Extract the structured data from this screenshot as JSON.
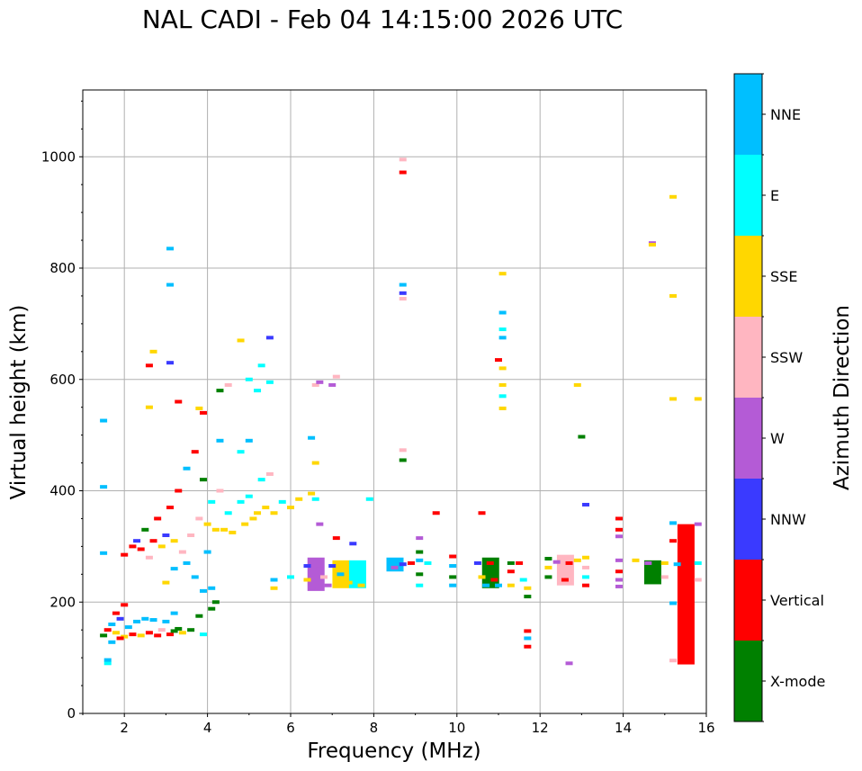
{
  "title": "NAL CADI - Feb 04 14:15:00 2026 UTC",
  "chart_data": {
    "type": "scatter",
    "title": "NAL CADI - Feb 04 14:15:00 2026 UTC",
    "xlabel": "Frequency (MHz)",
    "ylabel": "Virtual height (km)",
    "xlim": [
      1,
      16
    ],
    "ylim": [
      0,
      1120
    ],
    "xticks": [
      2,
      4,
      6,
      8,
      10,
      12,
      14,
      16
    ],
    "yticks": [
      0,
      200,
      400,
      600,
      800,
      1000
    ],
    "grid": true,
    "colorbar": {
      "label": "Azimuth Direction",
      "categories": [
        {
          "name": "X-mode",
          "color": "#008000"
        },
        {
          "name": "Vertical",
          "color": "#ff0000"
        },
        {
          "name": "NNW",
          "color": "#3a3aff"
        },
        {
          "name": "W",
          "color": "#b45bd6"
        },
        {
          "name": "SSW",
          "color": "#ffb6c1"
        },
        {
          "name": "SSE",
          "color": "#ffd700"
        },
        {
          "name": "E",
          "color": "#00ffff"
        },
        {
          "name": "NNE",
          "color": "#00bfff"
        }
      ]
    },
    "echoes": [
      {
        "f": 1.5,
        "h": 526,
        "c": "NNE"
      },
      {
        "f": 1.5,
        "h": 407,
        "c": "NNE"
      },
      {
        "f": 1.5,
        "h": 288,
        "c": "NNE"
      },
      {
        "f": 1.6,
        "h": 90,
        "c": "E"
      },
      {
        "f": 1.6,
        "h": 96,
        "c": "NNE"
      },
      {
        "f": 1.5,
        "h": 140,
        "c": "X-mode"
      },
      {
        "f": 1.6,
        "h": 150,
        "c": "Vertical"
      },
      {
        "f": 1.7,
        "h": 160,
        "c": "NNE"
      },
      {
        "f": 1.8,
        "h": 145,
        "c": "SSE"
      },
      {
        "f": 1.9,
        "h": 170,
        "c": "NNW"
      },
      {
        "f": 2.0,
        "h": 138,
        "c": "SSE"
      },
      {
        "f": 2.1,
        "h": 155,
        "c": "NNE"
      },
      {
        "f": 2.2,
        "h": 142,
        "c": "Vertical"
      },
      {
        "f": 2.3,
        "h": 165,
        "c": "NNE"
      },
      {
        "f": 2.4,
        "h": 140,
        "c": "SSE"
      },
      {
        "f": 2.5,
        "h": 170,
        "c": "NNE"
      },
      {
        "f": 2.6,
        "h": 145,
        "c": "Vertical"
      },
      {
        "f": 2.7,
        "h": 168,
        "c": "NNE"
      },
      {
        "f": 2.8,
        "h": 140,
        "c": "Vertical"
      },
      {
        "f": 2.9,
        "h": 150,
        "c": "SSW"
      },
      {
        "f": 3.0,
        "h": 165,
        "c": "NNE"
      },
      {
        "f": 3.1,
        "h": 142,
        "c": "Vertical"
      },
      {
        "f": 3.2,
        "h": 148,
        "c": "X-mode"
      },
      {
        "f": 3.3,
        "h": 152,
        "c": "X-mode"
      },
      {
        "f": 3.4,
        "h": 145,
        "c": "SSE"
      },
      {
        "f": 3.6,
        "h": 150,
        "c": "X-mode"
      },
      {
        "f": 3.9,
        "h": 142,
        "c": "E"
      },
      {
        "f": 1.7,
        "h": 128,
        "c": "NNE"
      },
      {
        "f": 1.9,
        "h": 135,
        "c": "Vertical"
      },
      {
        "f": 2.0,
        "h": 195,
        "c": "Vertical"
      },
      {
        "f": 1.8,
        "h": 180,
        "c": "Vertical"
      },
      {
        "f": 2.0,
        "h": 285,
        "c": "Vertical"
      },
      {
        "f": 2.2,
        "h": 300,
        "c": "Vertical"
      },
      {
        "f": 2.3,
        "h": 310,
        "c": "NNW"
      },
      {
        "f": 2.4,
        "h": 295,
        "c": "Vertical"
      },
      {
        "f": 2.5,
        "h": 330,
        "c": "X-mode"
      },
      {
        "f": 2.6,
        "h": 280,
        "c": "SSW"
      },
      {
        "f": 2.7,
        "h": 310,
        "c": "Vertical"
      },
      {
        "f": 2.8,
        "h": 350,
        "c": "Vertical"
      },
      {
        "f": 2.9,
        "h": 300,
        "c": "SSE"
      },
      {
        "f": 3.0,
        "h": 320,
        "c": "NNW"
      },
      {
        "f": 3.1,
        "h": 370,
        "c": "Vertical"
      },
      {
        "f": 3.2,
        "h": 310,
        "c": "SSE"
      },
      {
        "f": 3.3,
        "h": 400,
        "c": "Vertical"
      },
      {
        "f": 3.4,
        "h": 290,
        "c": "SSW"
      },
      {
        "f": 3.5,
        "h": 440,
        "c": "NNE"
      },
      {
        "f": 3.6,
        "h": 320,
        "c": "SSW"
      },
      {
        "f": 3.7,
        "h": 470,
        "c": "Vertical"
      },
      {
        "f": 3.8,
        "h": 350,
        "c": "SSW"
      },
      {
        "f": 3.9,
        "h": 420,
        "c": "X-mode"
      },
      {
        "f": 4.0,
        "h": 340,
        "c": "SSE"
      },
      {
        "f": 4.1,
        "h": 380,
        "c": "E"
      },
      {
        "f": 4.2,
        "h": 330,
        "c": "SSE"
      },
      {
        "f": 4.3,
        "h": 400,
        "c": "SSW"
      },
      {
        "f": 4.4,
        "h": 330,
        "c": "SSE"
      },
      {
        "f": 4.5,
        "h": 360,
        "c": "E"
      },
      {
        "f": 4.6,
        "h": 325,
        "c": "SSE"
      },
      {
        "f": 4.8,
        "h": 380,
        "c": "E"
      },
      {
        "f": 4.9,
        "h": 340,
        "c": "SSE"
      },
      {
        "f": 5.0,
        "h": 390,
        "c": "E"
      },
      {
        "f": 5.1,
        "h": 350,
        "c": "SSE"
      },
      {
        "f": 5.2,
        "h": 360,
        "c": "SSE"
      },
      {
        "f": 5.3,
        "h": 420,
        "c": "E"
      },
      {
        "f": 5.4,
        "h": 370,
        "c": "SSE"
      },
      {
        "f": 5.5,
        "h": 430,
        "c": "SSW"
      },
      {
        "f": 5.6,
        "h": 360,
        "c": "SSE"
      },
      {
        "f": 5.8,
        "h": 380,
        "c": "E"
      },
      {
        "f": 6.0,
        "h": 370,
        "c": "SSE"
      },
      {
        "f": 6.2,
        "h": 385,
        "c": "SSE"
      },
      {
        "f": 6.5,
        "h": 395,
        "c": "SSE"
      },
      {
        "f": 6.6,
        "h": 385,
        "c": "E"
      },
      {
        "f": 3.0,
        "h": 235,
        "c": "SSE"
      },
      {
        "f": 3.2,
        "h": 260,
        "c": "NNE"
      },
      {
        "f": 3.5,
        "h": 270,
        "c": "NNE"
      },
      {
        "f": 3.7,
        "h": 245,
        "c": "NNE"
      },
      {
        "f": 3.9,
        "h": 220,
        "c": "NNE"
      },
      {
        "f": 4.1,
        "h": 225,
        "c": "NNE"
      },
      {
        "f": 4.2,
        "h": 200,
        "c": "X-mode"
      },
      {
        "f": 4.1,
        "h": 188,
        "c": "X-mode"
      },
      {
        "f": 4.0,
        "h": 290,
        "c": "NNE"
      },
      {
        "f": 3.8,
        "h": 175,
        "c": "X-mode"
      },
      {
        "f": 3.2,
        "h": 180,
        "c": "NNE"
      },
      {
        "f": 2.7,
        "h": 650,
        "c": "SSE"
      },
      {
        "f": 2.6,
        "h": 625,
        "c": "Vertical"
      },
      {
        "f": 2.6,
        "h": 550,
        "c": "SSE"
      },
      {
        "f": 3.1,
        "h": 630,
        "c": "NNW"
      },
      {
        "f": 3.1,
        "h": 835,
        "c": "NNE"
      },
      {
        "f": 3.1,
        "h": 770,
        "c": "NNE"
      },
      {
        "f": 3.3,
        "h": 560,
        "c": "Vertical"
      },
      {
        "f": 3.8,
        "h": 548,
        "c": "SSE"
      },
      {
        "f": 3.9,
        "h": 540,
        "c": "Vertical"
      },
      {
        "f": 4.3,
        "h": 490,
        "c": "NNE"
      },
      {
        "f": 4.3,
        "h": 580,
        "c": "X-mode"
      },
      {
        "f": 4.5,
        "h": 590,
        "c": "SSW"
      },
      {
        "f": 4.8,
        "h": 670,
        "c": "SSE"
      },
      {
        "f": 5.0,
        "h": 600,
        "c": "E"
      },
      {
        "f": 5.2,
        "h": 580,
        "c": "E"
      },
      {
        "f": 5.5,
        "h": 595,
        "c": "E"
      },
      {
        "f": 5.5,
        "h": 675,
        "c": "NNW"
      },
      {
        "f": 5.3,
        "h": 625,
        "c": "E"
      },
      {
        "f": 5.0,
        "h": 490,
        "c": "NNE"
      },
      {
        "f": 4.8,
        "h": 470,
        "c": "E"
      },
      {
        "f": 6.5,
        "h": 495,
        "c": "NNE"
      },
      {
        "f": 6.6,
        "h": 450,
        "c": "SSE"
      },
      {
        "f": 6.6,
        "h": 590,
        "c": "SSW"
      },
      {
        "f": 6.7,
        "h": 595,
        "c": "W"
      },
      {
        "f": 7.0,
        "h": 590,
        "c": "W"
      },
      {
        "f": 7.1,
        "h": 605,
        "c": "SSW"
      },
      {
        "f": 6.7,
        "h": 340,
        "c": "W"
      },
      {
        "f": 7.1,
        "h": 315,
        "c": "Vertical"
      },
      {
        "f": 7.5,
        "h": 305,
        "c": "NNW"
      },
      {
        "f": 7.9,
        "h": 385,
        "c": "E"
      },
      {
        "f": 5.6,
        "h": 240,
        "c": "NNE"
      },
      {
        "f": 5.6,
        "h": 225,
        "c": "SSE"
      },
      {
        "f": 6.0,
        "h": 245,
        "c": "E"
      },
      {
        "f": 6.4,
        "h": 265,
        "c": "NNW"
      },
      {
        "f": 6.4,
        "h": 240,
        "c": "SSE"
      },
      {
        "f": 6.5,
        "h": 225,
        "c": "W"
      },
      {
        "f": 6.7,
        "h": 260,
        "c": "W"
      },
      {
        "f": 6.8,
        "h": 245,
        "c": "SSW"
      },
      {
        "f": 6.9,
        "h": 230,
        "c": "W"
      },
      {
        "f": 7.0,
        "h": 265,
        "c": "NNW"
      },
      {
        "f": 7.2,
        "h": 250,
        "c": "NNE"
      },
      {
        "f": 7.4,
        "h": 235,
        "c": "SSE"
      },
      {
        "f": 7.6,
        "h": 270,
        "c": "E"
      },
      {
        "f": 7.7,
        "h": 230,
        "c": "SSE"
      },
      {
        "f": 8.4,
        "h": 275,
        "c": "NNE"
      },
      {
        "f": 8.5,
        "h": 262,
        "c": "W"
      },
      {
        "f": 8.7,
        "h": 268,
        "c": "NNW"
      },
      {
        "f": 8.9,
        "h": 270,
        "c": "Vertical"
      },
      {
        "f": 9.1,
        "h": 275,
        "c": "NNE"
      },
      {
        "f": 9.1,
        "h": 250,
        "c": "X-mode"
      },
      {
        "f": 9.1,
        "h": 230,
        "c": "E"
      },
      {
        "f": 9.1,
        "h": 315,
        "c": "W"
      },
      {
        "f": 9.1,
        "h": 290,
        "c": "X-mode"
      },
      {
        "f": 9.3,
        "h": 270,
        "c": "E"
      },
      {
        "f": 9.5,
        "h": 360,
        "c": "Vertical"
      },
      {
        "f": 8.7,
        "h": 455,
        "c": "X-mode"
      },
      {
        "f": 8.7,
        "h": 473,
        "c": "SSW"
      },
      {
        "f": 8.7,
        "h": 770,
        "c": "NNE"
      },
      {
        "f": 8.7,
        "h": 755,
        "c": "NNW"
      },
      {
        "f": 8.7,
        "h": 745,
        "c": "SSW"
      },
      {
        "f": 8.7,
        "h": 972,
        "c": "Vertical"
      },
      {
        "f": 8.7,
        "h": 995,
        "c": "SSW"
      },
      {
        "f": 9.9,
        "h": 282,
        "c": "Vertical"
      },
      {
        "f": 9.9,
        "h": 265,
        "c": "NNE"
      },
      {
        "f": 9.9,
        "h": 245,
        "c": "X-mode"
      },
      {
        "f": 9.9,
        "h": 230,
        "c": "NNE"
      },
      {
        "f": 10.5,
        "h": 270,
        "c": "NNW"
      },
      {
        "f": 10.6,
        "h": 360,
        "c": "Vertical"
      },
      {
        "f": 10.6,
        "h": 245,
        "c": "SSE"
      },
      {
        "f": 10.7,
        "h": 230,
        "c": "NNE"
      },
      {
        "f": 10.8,
        "h": 270,
        "c": "Vertical"
      },
      {
        "f": 10.9,
        "h": 240,
        "c": "Vertical"
      },
      {
        "f": 11.0,
        "h": 230,
        "c": "NNE"
      },
      {
        "f": 11.0,
        "h": 635,
        "c": "Vertical"
      },
      {
        "f": 11.1,
        "h": 620,
        "c": "SSE"
      },
      {
        "f": 11.1,
        "h": 590,
        "c": "SSE"
      },
      {
        "f": 11.1,
        "h": 570,
        "c": "E"
      },
      {
        "f": 11.1,
        "h": 548,
        "c": "SSE"
      },
      {
        "f": 11.1,
        "h": 720,
        "c": "NNE"
      },
      {
        "f": 11.1,
        "h": 690,
        "c": "E"
      },
      {
        "f": 11.1,
        "h": 675,
        "c": "NNE"
      },
      {
        "f": 11.1,
        "h": 790,
        "c": "SSE"
      },
      {
        "f": 11.3,
        "h": 270,
        "c": "X-mode"
      },
      {
        "f": 11.3,
        "h": 255,
        "c": "Vertical"
      },
      {
        "f": 11.3,
        "h": 230,
        "c": "SSE"
      },
      {
        "f": 11.5,
        "h": 270,
        "c": "Vertical"
      },
      {
        "f": 11.6,
        "h": 240,
        "c": "E"
      },
      {
        "f": 11.7,
        "h": 225,
        "c": "SSE"
      },
      {
        "f": 11.7,
        "h": 210,
        "c": "X-mode"
      },
      {
        "f": 11.7,
        "h": 148,
        "c": "Vertical"
      },
      {
        "f": 11.7,
        "h": 135,
        "c": "NNE"
      },
      {
        "f": 11.7,
        "h": 120,
        "c": "Vertical"
      },
      {
        "f": 12.2,
        "h": 278,
        "c": "X-mode"
      },
      {
        "f": 12.2,
        "h": 262,
        "c": "SSE"
      },
      {
        "f": 12.2,
        "h": 245,
        "c": "X-mode"
      },
      {
        "f": 12.4,
        "h": 272,
        "c": "W"
      },
      {
        "f": 12.5,
        "h": 280,
        "c": "SSW"
      },
      {
        "f": 12.6,
        "h": 240,
        "c": "Vertical"
      },
      {
        "f": 12.7,
        "h": 270,
        "c": "Vertical"
      },
      {
        "f": 12.7,
        "h": 90,
        "c": "W"
      },
      {
        "f": 12.9,
        "h": 275,
        "c": "SSE"
      },
      {
        "f": 12.9,
        "h": 590,
        "c": "SSE"
      },
      {
        "f": 13.0,
        "h": 497,
        "c": "X-mode"
      },
      {
        "f": 13.1,
        "h": 375,
        "c": "NNW"
      },
      {
        "f": 13.1,
        "h": 280,
        "c": "SSE"
      },
      {
        "f": 13.1,
        "h": 262,
        "c": "SSW"
      },
      {
        "f": 13.1,
        "h": 245,
        "c": "E"
      },
      {
        "f": 13.1,
        "h": 230,
        "c": "Vertical"
      },
      {
        "f": 13.9,
        "h": 350,
        "c": "Vertical"
      },
      {
        "f": 13.9,
        "h": 330,
        "c": "Vertical"
      },
      {
        "f": 13.9,
        "h": 318,
        "c": "W"
      },
      {
        "f": 13.9,
        "h": 275,
        "c": "W"
      },
      {
        "f": 13.9,
        "h": 255,
        "c": "Vertical"
      },
      {
        "f": 13.9,
        "h": 240,
        "c": "W"
      },
      {
        "f": 13.9,
        "h": 228,
        "c": "W"
      },
      {
        "f": 14.3,
        "h": 275,
        "c": "SSE"
      },
      {
        "f": 14.7,
        "h": 845,
        "c": "W"
      },
      {
        "f": 14.7,
        "h": 842,
        "c": "SSE"
      },
      {
        "f": 15.2,
        "h": 928,
        "c": "SSE"
      },
      {
        "f": 15.2,
        "h": 750,
        "c": "SSE"
      },
      {
        "f": 15.2,
        "h": 565,
        "c": "SSE"
      },
      {
        "f": 15.8,
        "h": 565,
        "c": "SSE"
      },
      {
        "f": 15.2,
        "h": 342,
        "c": "NNE"
      },
      {
        "f": 15.2,
        "h": 310,
        "c": "Vertical"
      },
      {
        "f": 15.0,
        "h": 270,
        "c": "SSE"
      },
      {
        "f": 15.0,
        "h": 245,
        "c": "SSW"
      },
      {
        "f": 14.7,
        "h": 238,
        "c": "X-mode"
      },
      {
        "f": 15.3,
        "h": 268,
        "c": "NNE"
      },
      {
        "f": 15.2,
        "h": 198,
        "c": "NNE"
      },
      {
        "f": 15.2,
        "h": 95,
        "c": "SSW"
      },
      {
        "f": 15.8,
        "h": 340,
        "c": "W"
      },
      {
        "f": 15.8,
        "h": 270,
        "c": "E"
      },
      {
        "f": 15.8,
        "h": 240,
        "c": "SSW"
      },
      {
        "f": 14.6,
        "h": 270,
        "c": "W"
      }
    ],
    "bands": [
      {
        "f": 6.6,
        "h1": 220,
        "h2": 280,
        "c": "W"
      },
      {
        "f": 7.2,
        "h1": 225,
        "h2": 275,
        "c": "SSE"
      },
      {
        "f": 7.6,
        "h1": 225,
        "h2": 275,
        "c": "E"
      },
      {
        "f": 8.5,
        "h1": 255,
        "h2": 280,
        "c": "NNE"
      },
      {
        "f": 10.8,
        "h1": 225,
        "h2": 280,
        "c": "X-mode"
      },
      {
        "f": 12.6,
        "h1": 230,
        "h2": 285,
        "c": "SSW"
      },
      {
        "f": 14.7,
        "h1": 232,
        "h2": 275,
        "c": "X-mode"
      },
      {
        "f": 15.5,
        "h1": 88,
        "h2": 340,
        "c": "Vertical"
      }
    ]
  }
}
